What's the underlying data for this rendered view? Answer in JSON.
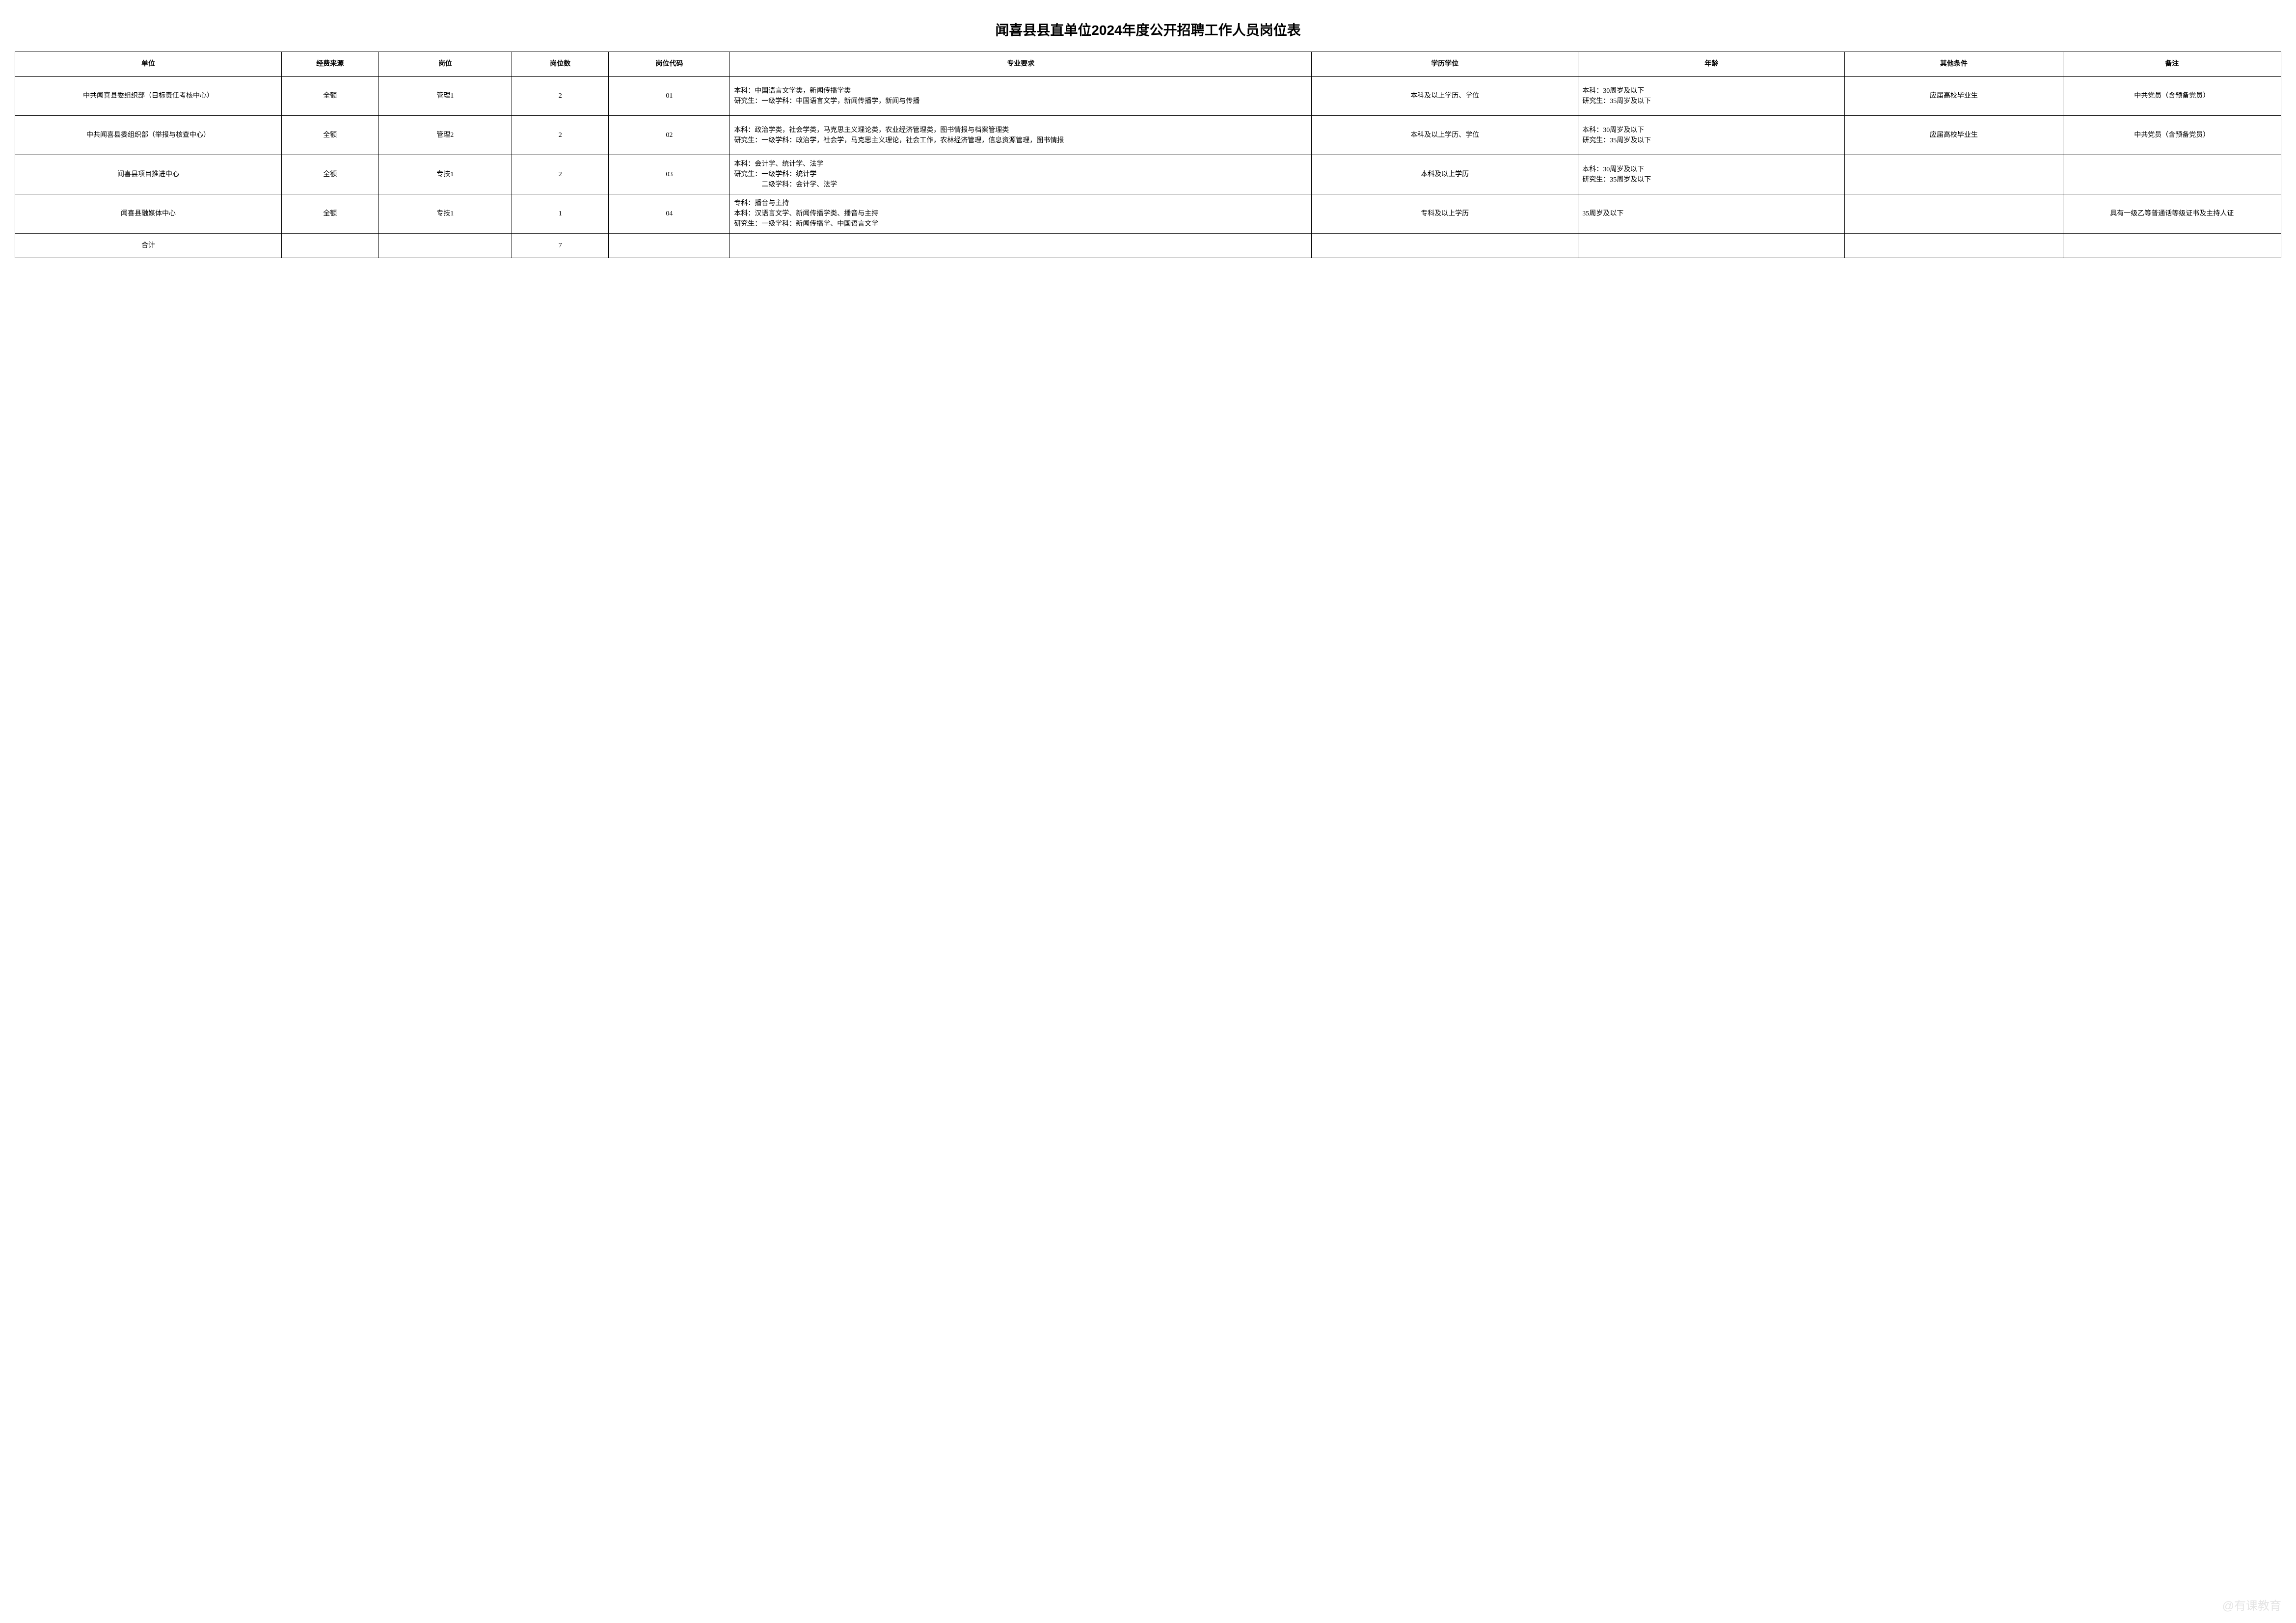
{
  "title": "闻喜县县直单位2024年度公开招聘工作人员岗位表",
  "headers": {
    "unit": "单位",
    "funding": "经费来源",
    "position": "岗位",
    "count": "岗位数",
    "code": "岗位代码",
    "major": "专业要求",
    "education": "学历学位",
    "age": "年龄",
    "other": "其他条件",
    "note": "备注"
  },
  "rows": [
    {
      "unit": "中共闻喜县委组织部（目标责任考核中心）",
      "funding": "全额",
      "position": "管理1",
      "count": "2",
      "code": "01",
      "major": "本科：中国语言文学类，新闻传播学类\n研究生：一级学科：中国语言文学，新闻传播学，新闻与传播",
      "education": "本科及以上学历、学位",
      "age": "本科：30周岁及以下\n研究生：35周岁及以下",
      "other": "应届高校毕业生",
      "note": "中共党员（含预备党员）"
    },
    {
      "unit": "中共闻喜县委组织部（举报与核查中心）",
      "funding": "全额",
      "position": "管理2",
      "count": "2",
      "code": "02",
      "major": "本科：政治学类，社会学类，马克思主义理论类，农业经济管理类，图书情报与档案管理类\n研究生：一级学科：政治学，社会学，马克思主义理论，社会工作，农林经济管理，信息资源管理，图书情报",
      "education": "本科及以上学历、学位",
      "age": "本科：30周岁及以下\n研究生：35周岁及以下",
      "other": "应届高校毕业生",
      "note": "中共党员（含预备党员）"
    },
    {
      "unit": "闻喜县项目推进中心",
      "funding": "全额",
      "position": "专技1",
      "count": "2",
      "code": "03",
      "major": "本科：会计学、统计学、法学\n研究生：一级学科：统计学\n　　　　二级学科：会计学、法学",
      "education": "本科及以上学历",
      "age": "本科：30周岁及以下\n研究生：35周岁及以下",
      "other": "",
      "note": ""
    },
    {
      "unit": "闻喜县融媒体中心",
      "funding": "全额",
      "position": "专技1",
      "count": "1",
      "code": "04",
      "major": "专科：播音与主持\n本科：汉语言文学、新闻传播学类、播音与主持\n研究生：一级学科：新闻传播学、中国语言文学",
      "education": "专科及以上学历",
      "age": "35周岁及以下",
      "other": "",
      "note": "具有一级乙等普通话等级证书及主持人证"
    }
  ],
  "total": {
    "label": "合计",
    "count": "7"
  },
  "watermark": "@有课教育"
}
